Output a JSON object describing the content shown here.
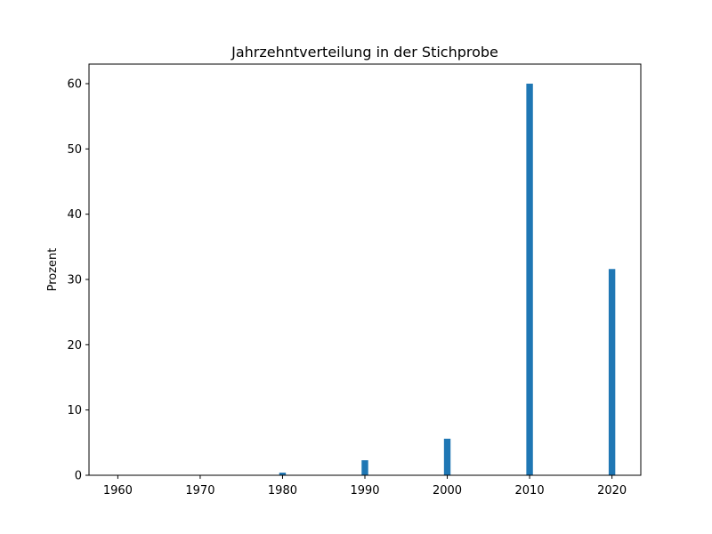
{
  "chart_data": {
    "type": "bar",
    "title": "Jahrzehntverteilung in der Stichprobe",
    "xlabel": "",
    "ylabel": "Prozent",
    "categories": [
      "1960",
      "1970",
      "1980",
      "1990",
      "2000",
      "2010",
      "2020"
    ],
    "x": [
      1960,
      1970,
      1980,
      1990,
      2000,
      2010,
      2020
    ],
    "values": [
      0.05,
      0.05,
      0.4,
      2.3,
      5.6,
      60.0,
      31.6
    ],
    "xlim": [
      1956.5,
      2023.5
    ],
    "ylim": [
      0,
      63
    ],
    "yticks": [
      0,
      10,
      20,
      30,
      40,
      50,
      60
    ],
    "bar_width": 0.8,
    "bar_color": "#1f77b4",
    "grid": false,
    "legend": "none"
  }
}
